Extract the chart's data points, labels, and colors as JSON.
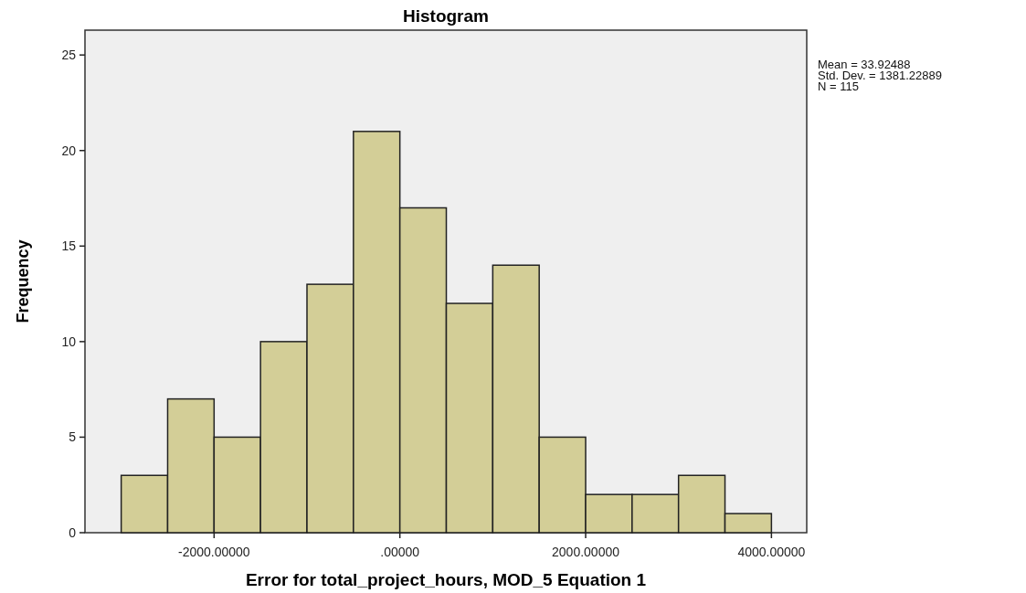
{
  "chart_data": {
    "type": "histogram",
    "title": "Histogram",
    "xlabel": "Error for total_project_hours, MOD_5 Equation 1",
    "ylabel": "Frequency",
    "bins": [
      -3000,
      -2500,
      -2000,
      -1500,
      -1000,
      -500,
      0,
      500,
      1000,
      1500,
      2000,
      2500,
      3000,
      3500,
      4000
    ],
    "values": [
      3,
      7,
      5,
      10,
      13,
      21,
      17,
      12,
      14,
      5,
      2,
      2,
      3,
      1
    ],
    "color": "#d3ce97",
    "xlim": [
      -3390,
      4380
    ],
    "xticks": [
      {
        "value": -2000,
        "label": "-2000.00000"
      },
      {
        "value": 0,
        "label": ".00000"
      },
      {
        "value": 2000,
        "label": "2000.00000"
      },
      {
        "value": 4000,
        "label": "4000.00000"
      }
    ],
    "ylim": [
      0,
      26.3
    ],
    "yticks": [
      0,
      5,
      10,
      15,
      20,
      25
    ],
    "grid": false,
    "annotations": [
      "Mean = 33.92488",
      "Std. Dev. = 1381.22889",
      "N = 115"
    ]
  }
}
